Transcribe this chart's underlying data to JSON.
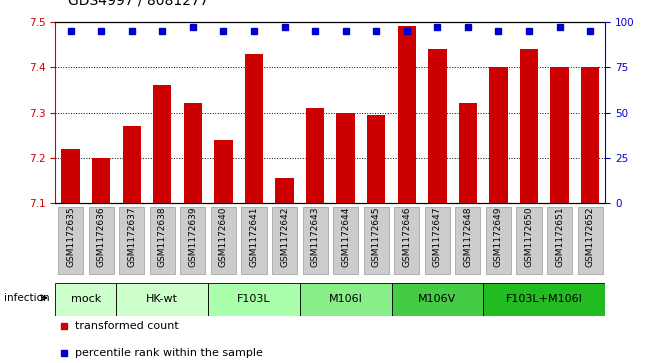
{
  "title": "GDS4997 / 8081277",
  "samples": [
    "GSM1172635",
    "GSM1172636",
    "GSM1172637",
    "GSM1172638",
    "GSM1172639",
    "GSM1172640",
    "GSM1172641",
    "GSM1172642",
    "GSM1172643",
    "GSM1172644",
    "GSM1172645",
    "GSM1172646",
    "GSM1172647",
    "GSM1172648",
    "GSM1172649",
    "GSM1172650",
    "GSM1172651",
    "GSM1172652"
  ],
  "red_values": [
    7.22,
    7.2,
    7.27,
    7.36,
    7.32,
    7.24,
    7.43,
    7.155,
    7.31,
    7.3,
    7.295,
    7.49,
    7.44,
    7.32,
    7.4,
    7.44,
    7.4,
    7.4
  ],
  "blue_values": [
    95,
    95,
    95,
    95,
    97,
    95,
    95,
    97,
    95,
    95,
    95,
    95,
    97,
    97,
    95,
    95,
    97,
    95
  ],
  "ylim_left": [
    7.1,
    7.5
  ],
  "ylim_right": [
    0,
    100
  ],
  "yticks_left": [
    7.1,
    7.2,
    7.3,
    7.4,
    7.5
  ],
  "yticks_right": [
    0,
    25,
    50,
    75,
    100
  ],
  "bar_color": "#cc0000",
  "dot_color": "#0000cc",
  "groups": [
    {
      "label": "mock",
      "start": 0,
      "end": 2,
      "color": "#ccffcc"
    },
    {
      "label": "HK-wt",
      "start": 2,
      "end": 5,
      "color": "#ccffcc"
    },
    {
      "label": "F103L",
      "start": 5,
      "end": 8,
      "color": "#aaffaa"
    },
    {
      "label": "M106I",
      "start": 8,
      "end": 11,
      "color": "#88ee88"
    },
    {
      "label": "M106V",
      "start": 11,
      "end": 14,
      "color": "#44cc44"
    },
    {
      "label": "F103L+M106I",
      "start": 14,
      "end": 18,
      "color": "#22bb22"
    }
  ],
  "infection_label": "infection",
  "legend_items": [
    "transformed count",
    "percentile rank within the sample"
  ],
  "bar_width": 0.6,
  "bar_color_hex": "#cc0000",
  "dot_color_hex": "#0000cc",
  "title_fontsize": 10,
  "tick_fontsize": 7.5,
  "sample_fontsize": 6.5,
  "group_fontsize": 8,
  "sample_box_color": "#cccccc",
  "sample_box_edgecolor": "#999999"
}
